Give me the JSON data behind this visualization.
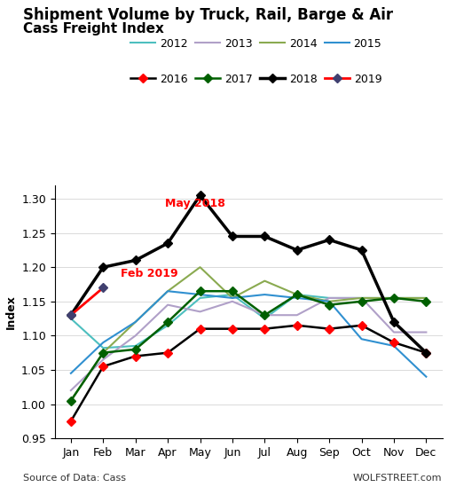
{
  "title_line1": "Shipment Volume by Truck, Rail, Barge & Air",
  "title_line2": "Cass Freight Index",
  "ylabel": "Index",
  "ylim": [
    0.95,
    1.32
  ],
  "yticks": [
    0.95,
    1.0,
    1.05,
    1.1,
    1.15,
    1.2,
    1.25,
    1.3
  ],
  "months": [
    "Jan",
    "Feb",
    "Mar",
    "Apr",
    "May",
    "Jun",
    "Jul",
    "Aug",
    "Sep",
    "Oct",
    "Nov",
    "Dec"
  ],
  "annotation1_text": "May 2018",
  "annotation1_color": "red",
  "annotation2_text": "Feb 2019",
  "annotation2_color": "red",
  "source_text": "Source of Data: Cass",
  "watermark_text": "WOLFSTREET.com",
  "series": {
    "2012": {
      "values": [
        1.125,
        1.082,
        1.085,
        1.115,
        1.155,
        1.16,
        1.125,
        1.16,
        1.155,
        1.155,
        1.155,
        1.155
      ],
      "color": "#4DBFBF",
      "linewidth": 1.5,
      "marker": null,
      "zorder": 2
    },
    "2013": {
      "values": [
        1.02,
        1.065,
        1.1,
        1.145,
        1.135,
        1.15,
        1.13,
        1.13,
        1.155,
        1.155,
        1.105,
        1.105
      ],
      "color": "#B0A0C8",
      "linewidth": 1.5,
      "marker": null,
      "zorder": 2
    },
    "2014": {
      "values": [
        1.005,
        1.075,
        1.12,
        1.165,
        1.2,
        1.155,
        1.18,
        1.16,
        1.15,
        1.155,
        1.155,
        1.155
      ],
      "color": "#8AAA50",
      "linewidth": 1.5,
      "marker": null,
      "zorder": 2
    },
    "2015": {
      "values": [
        1.045,
        1.09,
        1.12,
        1.165,
        1.16,
        1.155,
        1.16,
        1.155,
        1.15,
        1.095,
        1.085,
        1.04
      ],
      "color": "#3090D0",
      "linewidth": 1.5,
      "marker": null,
      "zorder": 2
    },
    "2016": {
      "values": [
        0.975,
        1.055,
        1.07,
        1.075,
        1.11,
        1.11,
        1.11,
        1.115,
        1.11,
        1.115,
        1.09,
        1.075
      ],
      "color": "#000000",
      "linewidth": 1.8,
      "marker": "D",
      "markercolor": "#FF0000",
      "markersize": 5,
      "zorder": 3
    },
    "2017": {
      "values": [
        1.005,
        1.075,
        1.08,
        1.12,
        1.165,
        1.165,
        1.13,
        1.16,
        1.145,
        1.15,
        1.155,
        1.15
      ],
      "color": "#006000",
      "linewidth": 1.8,
      "marker": "D",
      "markercolor": "#006000",
      "markersize": 5,
      "zorder": 3
    },
    "2018": {
      "values": [
        1.13,
        1.2,
        1.21,
        1.235,
        1.305,
        1.245,
        1.245,
        1.225,
        1.24,
        1.225,
        1.12,
        1.075
      ],
      "color": "#000000",
      "linewidth": 2.5,
      "marker": "D",
      "markercolor": "#000000",
      "markersize": 5,
      "zorder": 4
    },
    "2019": {
      "values": [
        1.13,
        1.17,
        null,
        null,
        null,
        null,
        null,
        null,
        null,
        null,
        null,
        null
      ],
      "color": "#FF0000",
      "linewidth": 2.0,
      "marker": "D",
      "markercolor": "#404070",
      "markersize": 5,
      "zorder": 5
    }
  }
}
